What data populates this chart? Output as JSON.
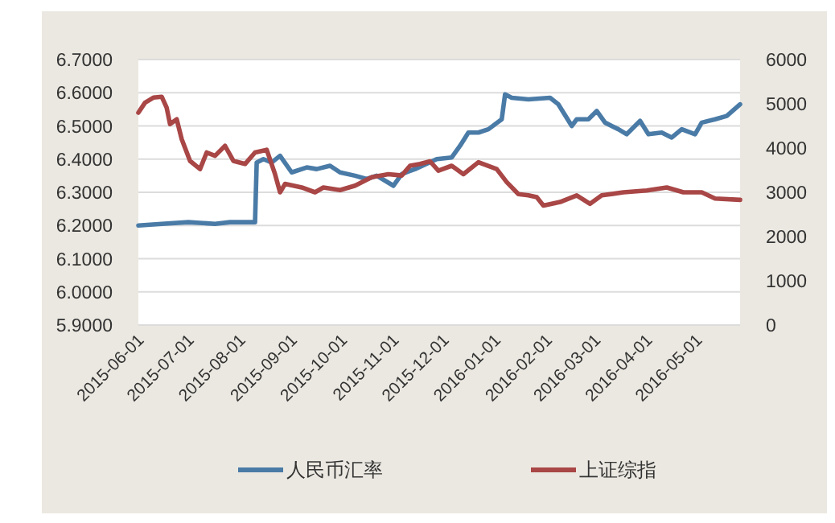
{
  "chart_data": {
    "type": "line",
    "xlim": [
      "2015-06-01",
      "2016-05-27"
    ],
    "xticks": [
      "2015-06-01",
      "2015-07-01",
      "2015-08-01",
      "2015-09-01",
      "2015-10-01",
      "2015-11-01",
      "2015-12-01",
      "2016-01-01",
      "2016-02-01",
      "2016-03-01",
      "2016-04-01",
      "2016-05-01"
    ],
    "ylim": [
      5.9,
      6.7
    ],
    "yticks": [
      {
        "value": 5.9,
        "label": "5.9000"
      },
      {
        "value": 6.0,
        "label": "6.0000"
      },
      {
        "value": 6.1,
        "label": "6.1000"
      },
      {
        "value": 6.2,
        "label": "6.2000"
      },
      {
        "value": 6.3,
        "label": "6.3000"
      },
      {
        "value": 6.4,
        "label": "6.4000"
      },
      {
        "value": 6.5,
        "label": "6.5000"
      },
      {
        "value": 6.6,
        "label": "6.6000"
      },
      {
        "value": 6.7,
        "label": "6.7000"
      }
    ],
    "y2lim": [
      0,
      6000
    ],
    "y2ticks": [
      0,
      1000,
      2000,
      3000,
      4000,
      5000,
      6000
    ],
    "grid": "y",
    "legend": "bottom",
    "line_style": "solid",
    "series": [
      {
        "name": "人民币汇率",
        "color": "#4a7ba7",
        "x": [
          "2015-06-01",
          "2015-06-15",
          "2015-07-01",
          "2015-07-17",
          "2015-07-26",
          "2015-08-10",
          "2015-08-11",
          "2015-08-15",
          "2015-08-20",
          "2015-08-25",
          "2015-09-01",
          "2015-09-10",
          "2015-09-16",
          "2015-09-24",
          "2015-09-30",
          "2015-10-09",
          "2015-10-16",
          "2015-10-22",
          "2015-11-01",
          "2015-11-06",
          "2015-11-14",
          "2015-11-27",
          "2015-12-06",
          "2015-12-11",
          "2015-12-16",
          "2015-12-22",
          "2015-12-28",
          "2016-01-05",
          "2016-01-07",
          "2016-01-11",
          "2016-01-21",
          "2016-02-03",
          "2016-02-08",
          "2016-02-16",
          "2016-02-19",
          "2016-02-26",
          "2016-03-02",
          "2016-03-07",
          "2016-03-15",
          "2016-03-20",
          "2016-03-28",
          "2016-04-02",
          "2016-04-10",
          "2016-04-16",
          "2016-04-22",
          "2016-04-30",
          "2016-05-04",
          "2016-05-12",
          "2016-05-19",
          "2016-05-27"
        ],
        "values": [
          6.2,
          6.205,
          6.21,
          6.205,
          6.21,
          6.21,
          6.39,
          6.4,
          6.39,
          6.41,
          6.36,
          6.375,
          6.37,
          6.38,
          6.36,
          6.35,
          6.34,
          6.35,
          6.32,
          6.355,
          6.37,
          6.4,
          6.405,
          6.44,
          6.48,
          6.48,
          6.49,
          6.52,
          6.595,
          6.585,
          6.58,
          6.585,
          6.565,
          6.5,
          6.52,
          6.52,
          6.545,
          6.51,
          6.49,
          6.475,
          6.515,
          6.475,
          6.48,
          6.465,
          6.49,
          6.475,
          6.51,
          6.52,
          6.53,
          6.565
        ]
      },
      {
        "name": "上证综指",
        "color": "#a94646",
        "axis": "y2",
        "x": [
          "2015-06-01",
          "2015-06-05",
          "2015-06-10",
          "2015-06-15",
          "2015-06-18",
          "2015-06-20",
          "2015-06-24",
          "2015-06-27",
          "2015-07-02",
          "2015-07-08",
          "2015-07-12",
          "2015-07-17",
          "2015-07-23",
          "2015-07-28",
          "2015-08-04",
          "2015-08-10",
          "2015-08-17",
          "2015-08-22",
          "2015-08-25",
          "2015-08-28",
          "2015-09-07",
          "2015-09-15",
          "2015-09-20",
          "2015-09-30",
          "2015-10-09",
          "2015-10-19",
          "2015-10-29",
          "2015-11-06",
          "2015-11-11",
          "2015-11-17",
          "2015-11-23",
          "2015-11-28",
          "2015-12-06",
          "2015-12-13",
          "2015-12-22",
          "2016-01-02",
          "2016-01-08",
          "2016-01-15",
          "2016-01-21",
          "2016-01-26",
          "2016-01-30",
          "2016-02-09",
          "2016-02-19",
          "2016-02-27",
          "2016-03-05",
          "2016-03-18",
          "2016-04-01",
          "2016-04-13",
          "2016-04-23",
          "2016-05-04",
          "2016-05-12",
          "2016-05-27"
        ],
        "values": [
          4800,
          5025,
          5140,
          5160,
          4910,
          4540,
          4650,
          4200,
          3710,
          3525,
          3900,
          3825,
          4050,
          3710,
          3640,
          3900,
          3960,
          3410,
          3000,
          3190,
          3110,
          3000,
          3110,
          3050,
          3150,
          3340,
          3410,
          3380,
          3600,
          3640,
          3700,
          3490,
          3600,
          3410,
          3680,
          3525,
          3230,
          2960,
          2930,
          2890,
          2700,
          2780,
          2930,
          2740,
          2930,
          3000,
          3040,
          3110,
          3000,
          3000,
          2860,
          2830
        ]
      }
    ]
  }
}
